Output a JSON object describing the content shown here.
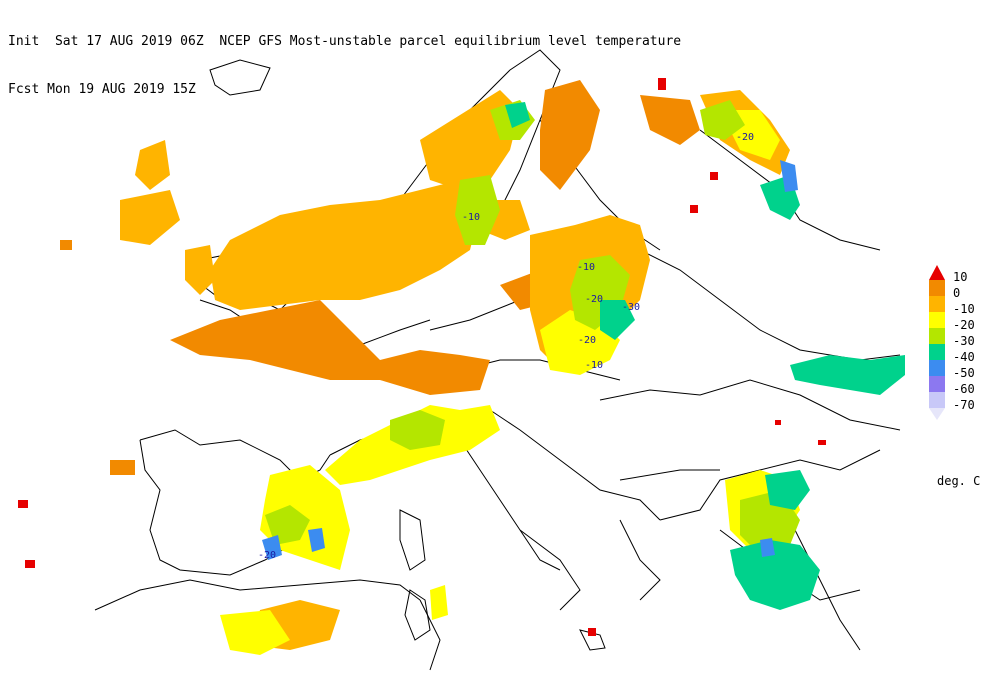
{
  "header": {
    "line1": "Init  Sat 17 AUG 2019 06Z  NCEP GFS Most-unstable parcel equilibrium level temperature",
    "line2": "Fcst Mon 19 AUG 2019 15Z"
  },
  "legend": {
    "units": "deg. C",
    "items": [
      {
        "label": "10",
        "color": "#e60000"
      },
      {
        "label": "0",
        "color": "#f28a00"
      },
      {
        "label": "-10",
        "color": "#ffb400"
      },
      {
        "label": "-20",
        "color": "#ffff00"
      },
      {
        "label": "-30",
        "color": "#b4e600"
      },
      {
        "label": "-40",
        "color": "#00d28c"
      },
      {
        "label": "-50",
        "color": "#3c8cf0"
      },
      {
        "label": "-60",
        "color": "#8c78f0"
      },
      {
        "label": "-70",
        "color": "#c8c8f8"
      }
    ],
    "below_color": "#e6e6fa"
  },
  "map_labels": [
    "-20",
    "-10",
    "-10",
    "-20",
    "-30",
    "-20",
    "-10",
    "-20"
  ]
}
